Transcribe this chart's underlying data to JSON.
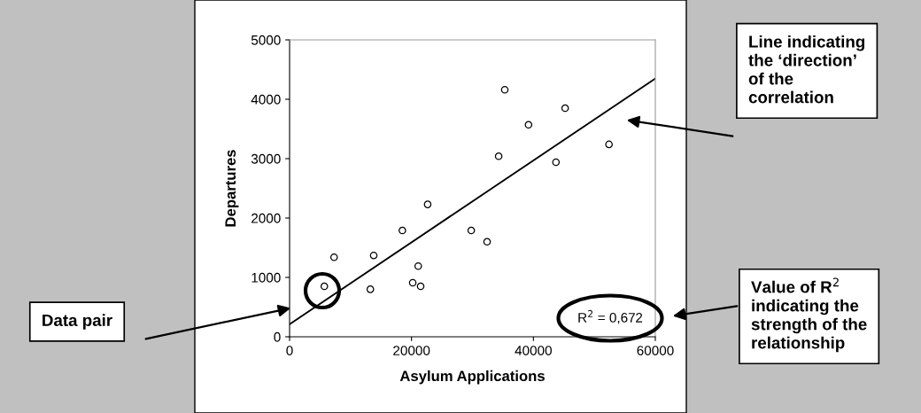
{
  "chart_data": {
    "type": "scatter",
    "xlabel": "Asylum Applications",
    "ylabel": "Departures",
    "xlim": [
      0,
      60000
    ],
    "ylim": [
      0,
      5000
    ],
    "xticks": [
      0,
      20000,
      40000,
      60000
    ],
    "yticks": [
      0,
      1000,
      2000,
      3000,
      4000,
      5000
    ],
    "grid": false,
    "legend": false,
    "series": [
      {
        "color": "#000000",
        "marker": "circle",
        "x": [
          5700,
          7300,
          13250,
          13800,
          18500,
          20200,
          21100,
          21500,
          22650,
          29800,
          32400,
          34300,
          35300,
          39200,
          43700,
          45200,
          52400
        ],
        "values": [
          850,
          1340,
          800,
          1370,
          1790,
          910,
          1190,
          850,
          2230,
          1790,
          1600,
          3040,
          4160,
          3570,
          2940,
          3850,
          3240
        ]
      },
      {
        "type": "line",
        "color": "#000000",
        "marker": "none",
        "line_style": "solid",
        "x": [
          0,
          60000
        ],
        "values": [
          210,
          4350
        ]
      }
    ],
    "annotations": [
      "R$^{2}$ = 0,672",
      "Data pair",
      "Line indicating\nthe ‘direction’\nof the\ncorrelation",
      "Value of R$^{2}$\nindicating the\nstrength of the\nrelationship"
    ]
  }
}
